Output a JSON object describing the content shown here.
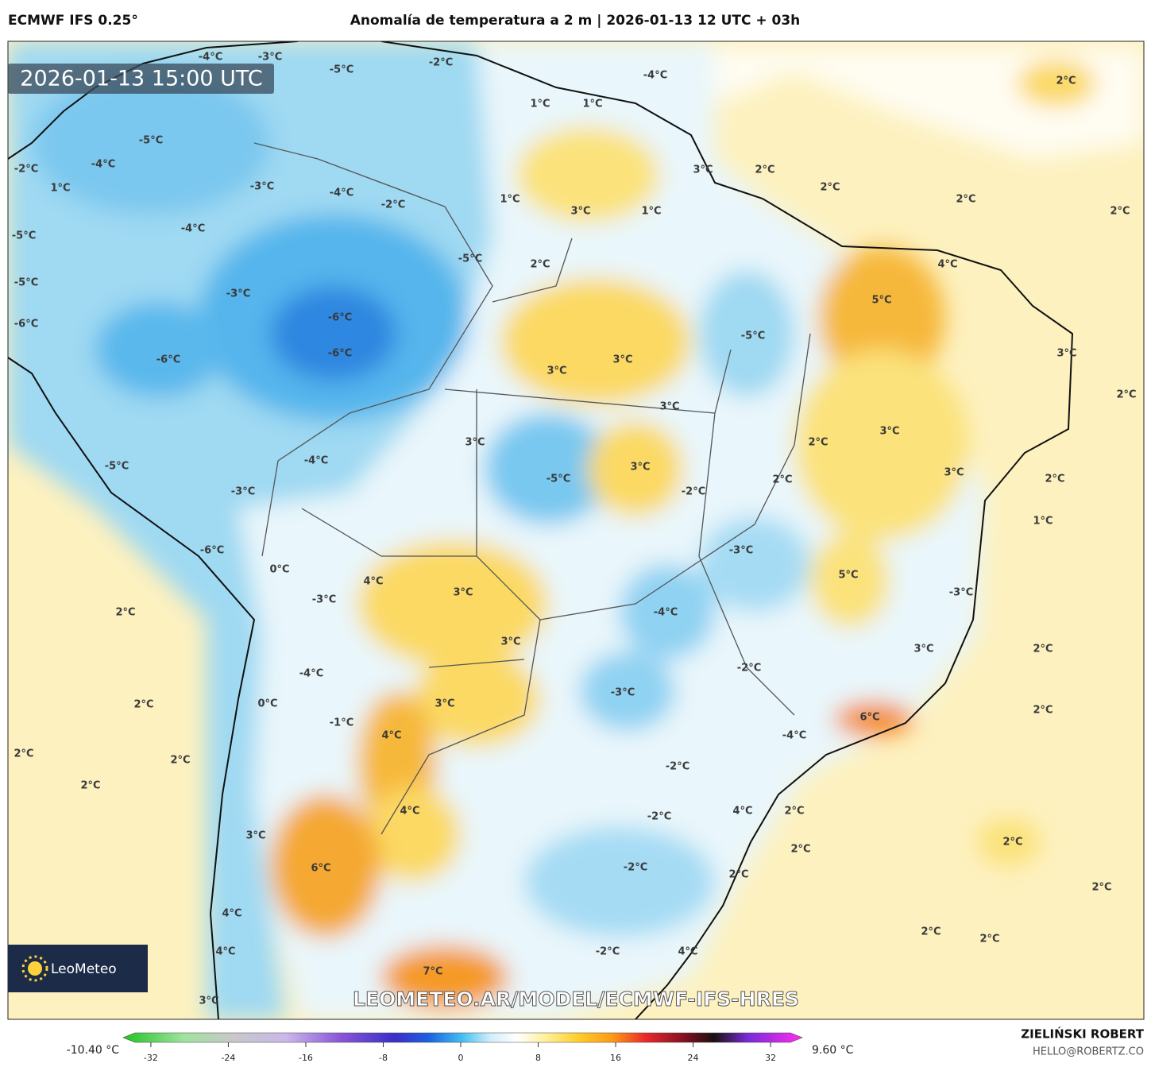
{
  "header": {
    "model": "ECMWF IFS 0.25°",
    "title": "Anomalía de temperatura a 2 m | 2026-01-13 12 UTC + 03h"
  },
  "map": {
    "timestamp": "2026-01-13 15:00 UTC",
    "watermark": "LEOMETEO.AR/MODEL/ECMWF-IFS-HRES",
    "logo": "LeoMeteo",
    "labels": [
      "-4°C",
      "-3°C",
      "-2°C",
      "-5°C",
      "-4°C",
      "2°C",
      "1°C",
      "1°C",
      "-5°C",
      "-4°C",
      "-2°C",
      "3°C",
      "2°C",
      "1°C",
      "-3°C",
      "-4°C",
      "2°C",
      "1°C",
      "-2°C",
      "2°C",
      "3°C",
      "1°C",
      "2°C",
      "-4°C",
      "-5°C",
      "-5°C",
      "2°C",
      "4°C",
      "-5°C",
      "-3°C",
      "5°C",
      "-6°C",
      "-6°C",
      "-5°C",
      "-6°C",
      "3°C",
      "-6°C",
      "3°C",
      "3°C",
      "2°C",
      "3°C",
      "3°C",
      "2°C",
      "3°C",
      "-4°C",
      "-5°C",
      "3°C",
      "-5°C",
      "2°C",
      "3°C",
      "2°C",
      "-3°C",
      "-2°C",
      "1°C",
      "-6°C",
      "-3°C",
      "0°C",
      "5°C",
      "4°C",
      "3°C",
      "-3°C",
      "-3°C",
      "2°C",
      "-4°C",
      "3°C",
      "2°C",
      "3°C",
      "-2°C",
      "-4°C",
      "-3°C",
      "2°C",
      "0°C",
      "3°C",
      "2°C",
      "6°C",
      "-1°C",
      "4°C",
      "-4°C",
      "2°C",
      "2°C",
      "-2°C",
      "2°C",
      "4°C",
      "2°C",
      "-2°C",
      "4°C",
      "3°C",
      "2°C",
      "2°C",
      "6°C",
      "-2°C",
      "2°C",
      "2°C",
      "4°C",
      "2°C",
      "2°C",
      "4°C",
      "4°C",
      "-2°C",
      "7°C",
      "3°C"
    ]
  },
  "colorbar": {
    "min_label": "-10.40 °C",
    "max_label": "9.60 °C",
    "ticks": [
      -32,
      -24,
      -16,
      -8,
      0,
      8,
      16,
      24,
      32
    ]
  },
  "footer": {
    "author": "ZIELIŃSKI ROBERT",
    "email": "HELLO@ROBERTZ.CO"
  }
}
